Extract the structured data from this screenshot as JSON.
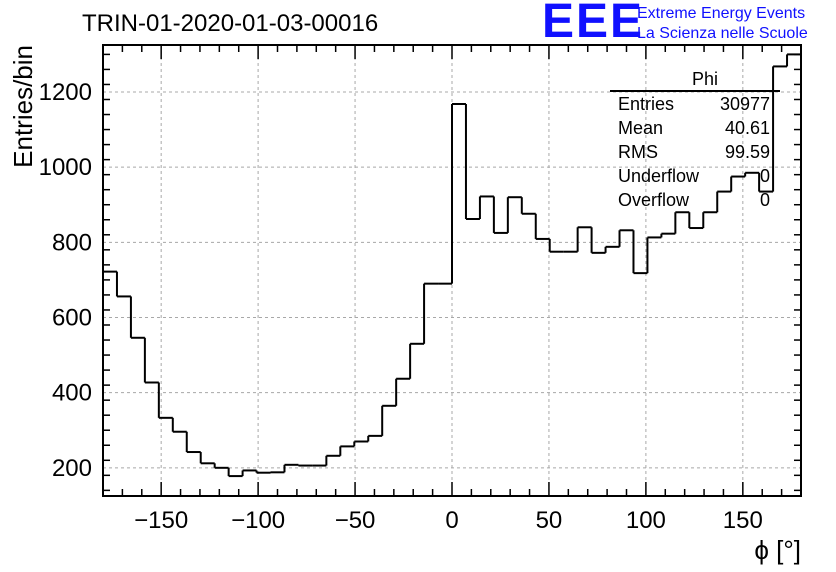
{
  "header": {
    "title": "TRIN-01-2020-01-03-00016"
  },
  "logo": {
    "mark": "EEE",
    "line1": "Extreme Energy Events",
    "line2": "La Scienza nelle Scuole",
    "color": "#1010ff"
  },
  "stats": {
    "name": "Phi",
    "rows": [
      {
        "label": "Entries",
        "value": "30977"
      },
      {
        "label": "Mean",
        "value": "40.61"
      },
      {
        "label": "RMS",
        "value": "99.59"
      },
      {
        "label": "Underflow",
        "value": "0"
      },
      {
        "label": "Overflow",
        "value": "0"
      }
    ]
  },
  "chart_data": {
    "type": "bar",
    "title": "TRIN-01-2020-01-03-00016",
    "xlabel": "ϕ [°]",
    "ylabel": "Entries/bin",
    "xlim": [
      -180,
      180
    ],
    "ylim": [
      125,
      1325
    ],
    "xticks": [
      -150,
      -100,
      -50,
      0,
      50,
      100,
      150
    ],
    "xtick_labels": [
      "−150",
      "−100",
      "−50",
      "0",
      "50",
      "100",
      "150"
    ],
    "yticks": [
      200,
      400,
      600,
      800,
      1000,
      1200
    ],
    "ytick_labels": [
      "200",
      "400",
      "600",
      "800",
      "1000",
      "1200"
    ],
    "grid": true,
    "bin_width": 7.2,
    "bin_edges_start": -180,
    "values": [
      722,
      656,
      546,
      427,
      333,
      296,
      242,
      212,
      200,
      178,
      193,
      187,
      188,
      208,
      206,
      206,
      232,
      257,
      270,
      285,
      365,
      437,
      530,
      690,
      690,
      1168,
      862,
      922,
      825,
      920,
      876,
      809,
      775,
      775,
      840,
      772,
      788,
      832,
      718,
      813,
      823,
      880,
      838,
      880,
      935,
      975,
      985,
      935,
      1268,
      1300
    ],
    "line_color": "#000000",
    "legend": "top-right"
  }
}
